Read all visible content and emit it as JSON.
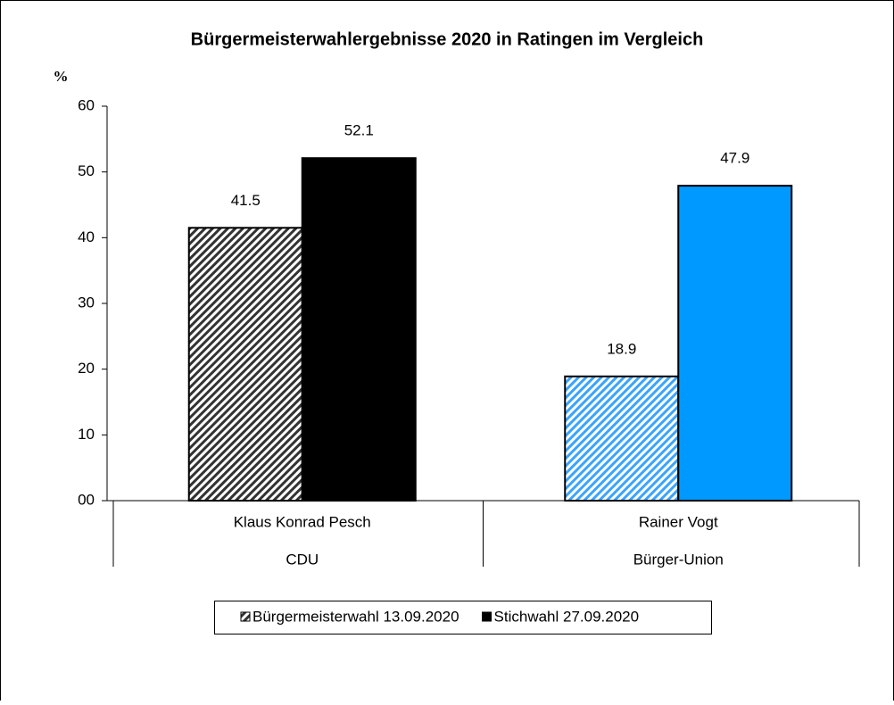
{
  "chart_data": {
    "type": "bar",
    "title": "Bürgermeisterwahlergebnisse 2020 in Ratingen im Vergleich",
    "y_label": "%",
    "categories": [
      [
        "Klaus Konrad Pesch",
        "CDU"
      ],
      [
        "Rainer Vogt",
        "Bürger-Union"
      ]
    ],
    "series": [
      {
        "name": "Bürgermeisterwahl 13.09.2020",
        "pattern": "hatch",
        "colors": [
          "#333333",
          "#3aa4ff"
        ],
        "values": [
          41.5,
          18.9
        ]
      },
      {
        "name": "Stichwahl 27.09.2020",
        "pattern": "solid",
        "colors": [
          "#000000",
          "#0099ff"
        ],
        "values": [
          52.1,
          47.9
        ]
      }
    ],
    "ylim": [
      0,
      60
    ],
    "yticks": [
      {
        "value": 0,
        "label": "00"
      },
      10,
      20,
      30,
      40,
      50,
      60
    ],
    "legend": "bottom"
  }
}
